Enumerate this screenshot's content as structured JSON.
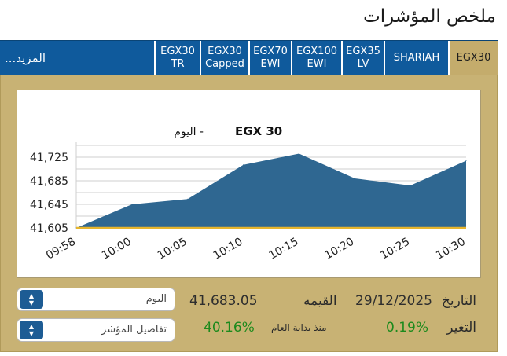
{
  "page_title": "ملخص المؤشرات",
  "more_link": "المزيد...",
  "tabs": [
    {
      "label": "EGX30\nTR",
      "active": false
    },
    {
      "label": "EGX30\nCapped",
      "active": false
    },
    {
      "label": "EGX70\nEWI",
      "active": false
    },
    {
      "label": "EGX100\nEWI",
      "active": false
    },
    {
      "label": "EGX35\nLV",
      "active": false
    },
    {
      "label": "SHARIAH",
      "active": false
    },
    {
      "label": "EGX30",
      "active": true
    }
  ],
  "chart_data": {
    "type": "area",
    "title": "EGX 30",
    "title_suffix": "- اليوم",
    "x": [
      "09:58",
      "10:00",
      "10:05",
      "10:10",
      "10:15",
      "10:20",
      "10:25",
      "10:30"
    ],
    "values": [
      41605,
      41645,
      41654,
      41712,
      41731,
      41689,
      41677,
      41719
    ],
    "y_ticks": [
      "41,725",
      "41,685",
      "41,645",
      "41,605"
    ],
    "ylim": [
      41605,
      41745
    ],
    "grid": true,
    "fill_color": "#2f6791",
    "baseline_color": "#e7b52c"
  },
  "controls": {
    "period_select": "اليوم",
    "details_select": "تفاصيل المؤشر"
  },
  "stats": {
    "date_label": "التاريخ",
    "date_value": "29/12/2025",
    "value_label": "القيمه",
    "value_value": "41,683.05",
    "change_label": "التغير",
    "change_value": "0.19%",
    "ytd_label": "منذ بداية العام",
    "ytd_value": "40.16%"
  }
}
